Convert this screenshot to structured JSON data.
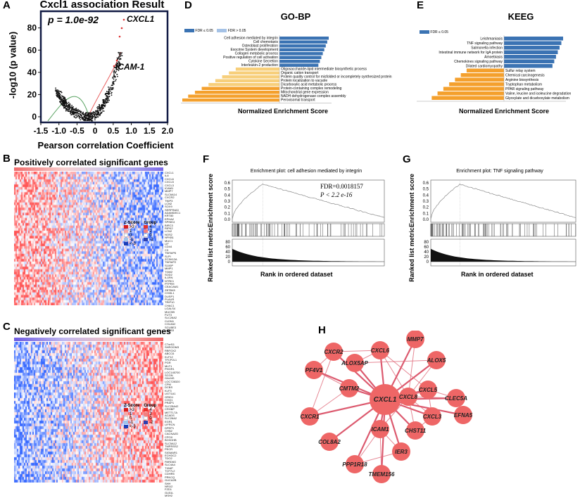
{
  "panels": {
    "A": {
      "label": "A",
      "title": "Cxcl1 association Result",
      "pvalue": "p = 1.0e-92",
      "ylabel": "-log10 (p value)",
      "xlabel": "Pearson correlation Coefficient",
      "annot1": "CXCL1",
      "annot2": "ICAM-1",
      "xticks": [
        "-1.5",
        "-1.0",
        "-0.5",
        "0",
        "0.5",
        "1.0",
        "1.5",
        "2.0"
      ],
      "yticks": [
        "0",
        "20",
        "40",
        "60",
        "80"
      ]
    },
    "B": {
      "label": "B",
      "title": "Positively correlated significant genes",
      "genes": [
        "CXCL1",
        "IL8",
        "CXCL6",
        "CXCL5",
        "CXCL3",
        "ICAM1",
        "MMP7",
        "SLC6A14",
        "CXCR2",
        "TNIP3",
        "LCN2",
        "SOX9",
        "SERPINA3",
        "ADAMDEC1",
        "KRT80",
        "EPHA2",
        "SPINK4",
        "BIRC3",
        "RIPK2",
        "LCN2",
        "NOS2",
        "NFKB1",
        "MUC1",
        "LIF",
        "CD44",
        "C3",
        "TNFAIP6",
        "SLPI",
        "ZC3H12A",
        "TNFAIP2",
        "S100P",
        "MMP1",
        "TGM2",
        "SOD2",
        "IL1RN",
        "NTRK1",
        "PTPRH",
        "CEACAM1",
        "ZBTB45",
        "CHI3L1",
        "DUSP1",
        "PLAUR",
        "TRIP10",
        "CHAC1",
        "LGALS4",
        "MUC5B",
        "FUT3",
        "SLC26A2",
        "CLDN1",
        "COL8A2",
        "SCUBE3",
        "LAMB3"
      ],
      "zscore": {
        "title": "Z-Score",
        "items": [
          ">3",
          "1",
          "0",
          "-1",
          "<-3"
        ]
      },
      "group": {
        "title": "Group",
        "items": [
          "4",
          "2",
          "0",
          "-2"
        ]
      }
    },
    "C": {
      "label": "C",
      "title": "Negatively correlated significant genes",
      "genes": [
        "C7orf11",
        "SHROOM3",
        "RBFOX2",
        "ABCC6",
        "KLF12",
        "TFCP2L1",
        "PGR",
        "MLF1",
        "PHGR1",
        "LOC145700",
        "SCGN",
        "GALNS",
        "LOC728320",
        "CPM",
        "DCBS",
        "KLF3",
        "UGT1A1",
        "GRID1",
        "COQ1",
        "PRAP1",
        "SLC25A42",
        "CRHBP",
        "METTL7A",
        "ACADS",
        "SLC26A2",
        "EGR1",
        "LIFRCN",
        "DPEP1",
        "CHN2",
        "CACNA2D",
        "CPOX",
        "BCKDHB",
        "SLC5A12",
        "TMPRSS2",
        "PECR",
        "SIGMAR1",
        "ECHDC2",
        "TDO2",
        "PARD6G",
        "SLC4A4",
        "TXNIP",
        "TCF7L2",
        "CDHR5",
        "PRKCQ",
        "GUCA2B",
        "SHH",
        "NR1I2",
        "FZD1",
        "GLB1L",
        "MSH2"
      ],
      "zscore": {
        "title": "Z-Score",
        "items": [
          ">3",
          "1",
          "0",
          "-1",
          "<-3"
        ]
      },
      "group": {
        "title": "Group",
        "items": [
          "4",
          "2",
          "0",
          "-2"
        ]
      }
    },
    "D": {
      "label": "D",
      "title": "GO-BP",
      "legend": [
        "FDR ≤ 0.05",
        "FDR > 0.05"
      ],
      "xlabel": "Normalized Enrichment Score",
      "pos_terms": [
        "Cell adhesion mediated by integrin",
        "Cell chemotaxis",
        "Osteoblast proliferation",
        "Exocrine System development",
        "Collagen metabolic process",
        "Positive regulation of cell activation",
        "Cytokine Secretion",
        "Interleukin-2 production"
      ],
      "neg_terms": [
        "Oligosaccharide-lipid intermediate biosynthetic process",
        "Organic cation transport",
        "Protein quality control for misfolded or incompletely synthesized protein",
        "Protein localization to vacuole",
        "Dicarboxylic acid metabolic process",
        "Protein-containing complex remodeling",
        "Mitochondrial gene expression",
        "NADH dehydrogenase complex assembly",
        "Peroxisomal transport"
      ]
    },
    "E": {
      "label": "E",
      "title": "KEEG",
      "legend": [
        "FDR ≤ 0.05"
      ],
      "xlabel": "Normalized Enrichment Score",
      "pos_terms": [
        "Leishmaniasis",
        "TNF signaling pathway",
        "Salmonella infection",
        "Intestinal immune network for IgA protein",
        "Amoebiasis",
        "Chemokines signaling pathway",
        "Dilated cardiomyopathy"
      ],
      "neg_terms": [
        "Sulfur relay system",
        "Chemical carcinogenesis",
        "Arginine biosynthesis",
        "Tryptophan metabolism",
        "PPAR signaling pathway",
        "Valine, leucine and isoleucine degradation",
        "Glyoxylate and dicarboxylate metabolism"
      ]
    },
    "F": {
      "label": "F",
      "title": "Enrichment plot: cell adhesion mediated by integrin",
      "fdr": "FDR=0.0018157",
      "pval": "P < 2.2 e-16",
      "ylabel1": "Enrichment score",
      "ylabel2": "Ranked list metric",
      "xlabel": "Rank in ordered dataset",
      "es_ticks": [
        "0.6",
        "0.5",
        "0.4",
        "0.3",
        "0.2",
        "0.1",
        "0.0"
      ],
      "rm_ticks": [
        "80",
        "60",
        "40",
        "20",
        "0"
      ]
    },
    "G": {
      "label": "G",
      "title": "Enrichment plot: TNF signaling pathway",
      "ylabel1": "Enrichment score",
      "ylabel2": "Ranked list metric",
      "xlabel": "Rank in ordered dataset",
      "es_ticks": [
        "0.6",
        "0.5",
        "0.4",
        "0.3",
        "0.2",
        "0.1",
        "0.0"
      ],
      "rm_ticks": [
        "80",
        "60",
        "40",
        "20",
        "0"
      ]
    },
    "H": {
      "label": "H",
      "nodes": [
        {
          "id": "CXCL1",
          "big": true
        },
        {
          "id": "MMP7"
        },
        {
          "id": "CXCR2"
        },
        {
          "id": "ALOX5AP"
        },
        {
          "id": "CXCL6"
        },
        {
          "id": "ALOX5"
        },
        {
          "id": "PF4V1"
        },
        {
          "id": "CXCL5"
        },
        {
          "id": "CMTM2"
        },
        {
          "id": "CXCL8"
        },
        {
          "id": "CLEC5A"
        },
        {
          "id": "EFNA5"
        },
        {
          "id": "CXCR1"
        },
        {
          "id": "CXCL3"
        },
        {
          "id": "ICAM1"
        },
        {
          "id": "CHST11"
        },
        {
          "id": "COL8A2"
        },
        {
          "id": "IER3"
        },
        {
          "id": "PPP1R18"
        },
        {
          "id": "TMEM156"
        }
      ]
    }
  },
  "colors": {
    "blue": "#3b73b3",
    "orange": "#f4a02d",
    "lightorange": "#f7cf7b",
    "red": "#e8484a",
    "nodefill": "#ee6666",
    "edge": "#d63e56"
  }
}
